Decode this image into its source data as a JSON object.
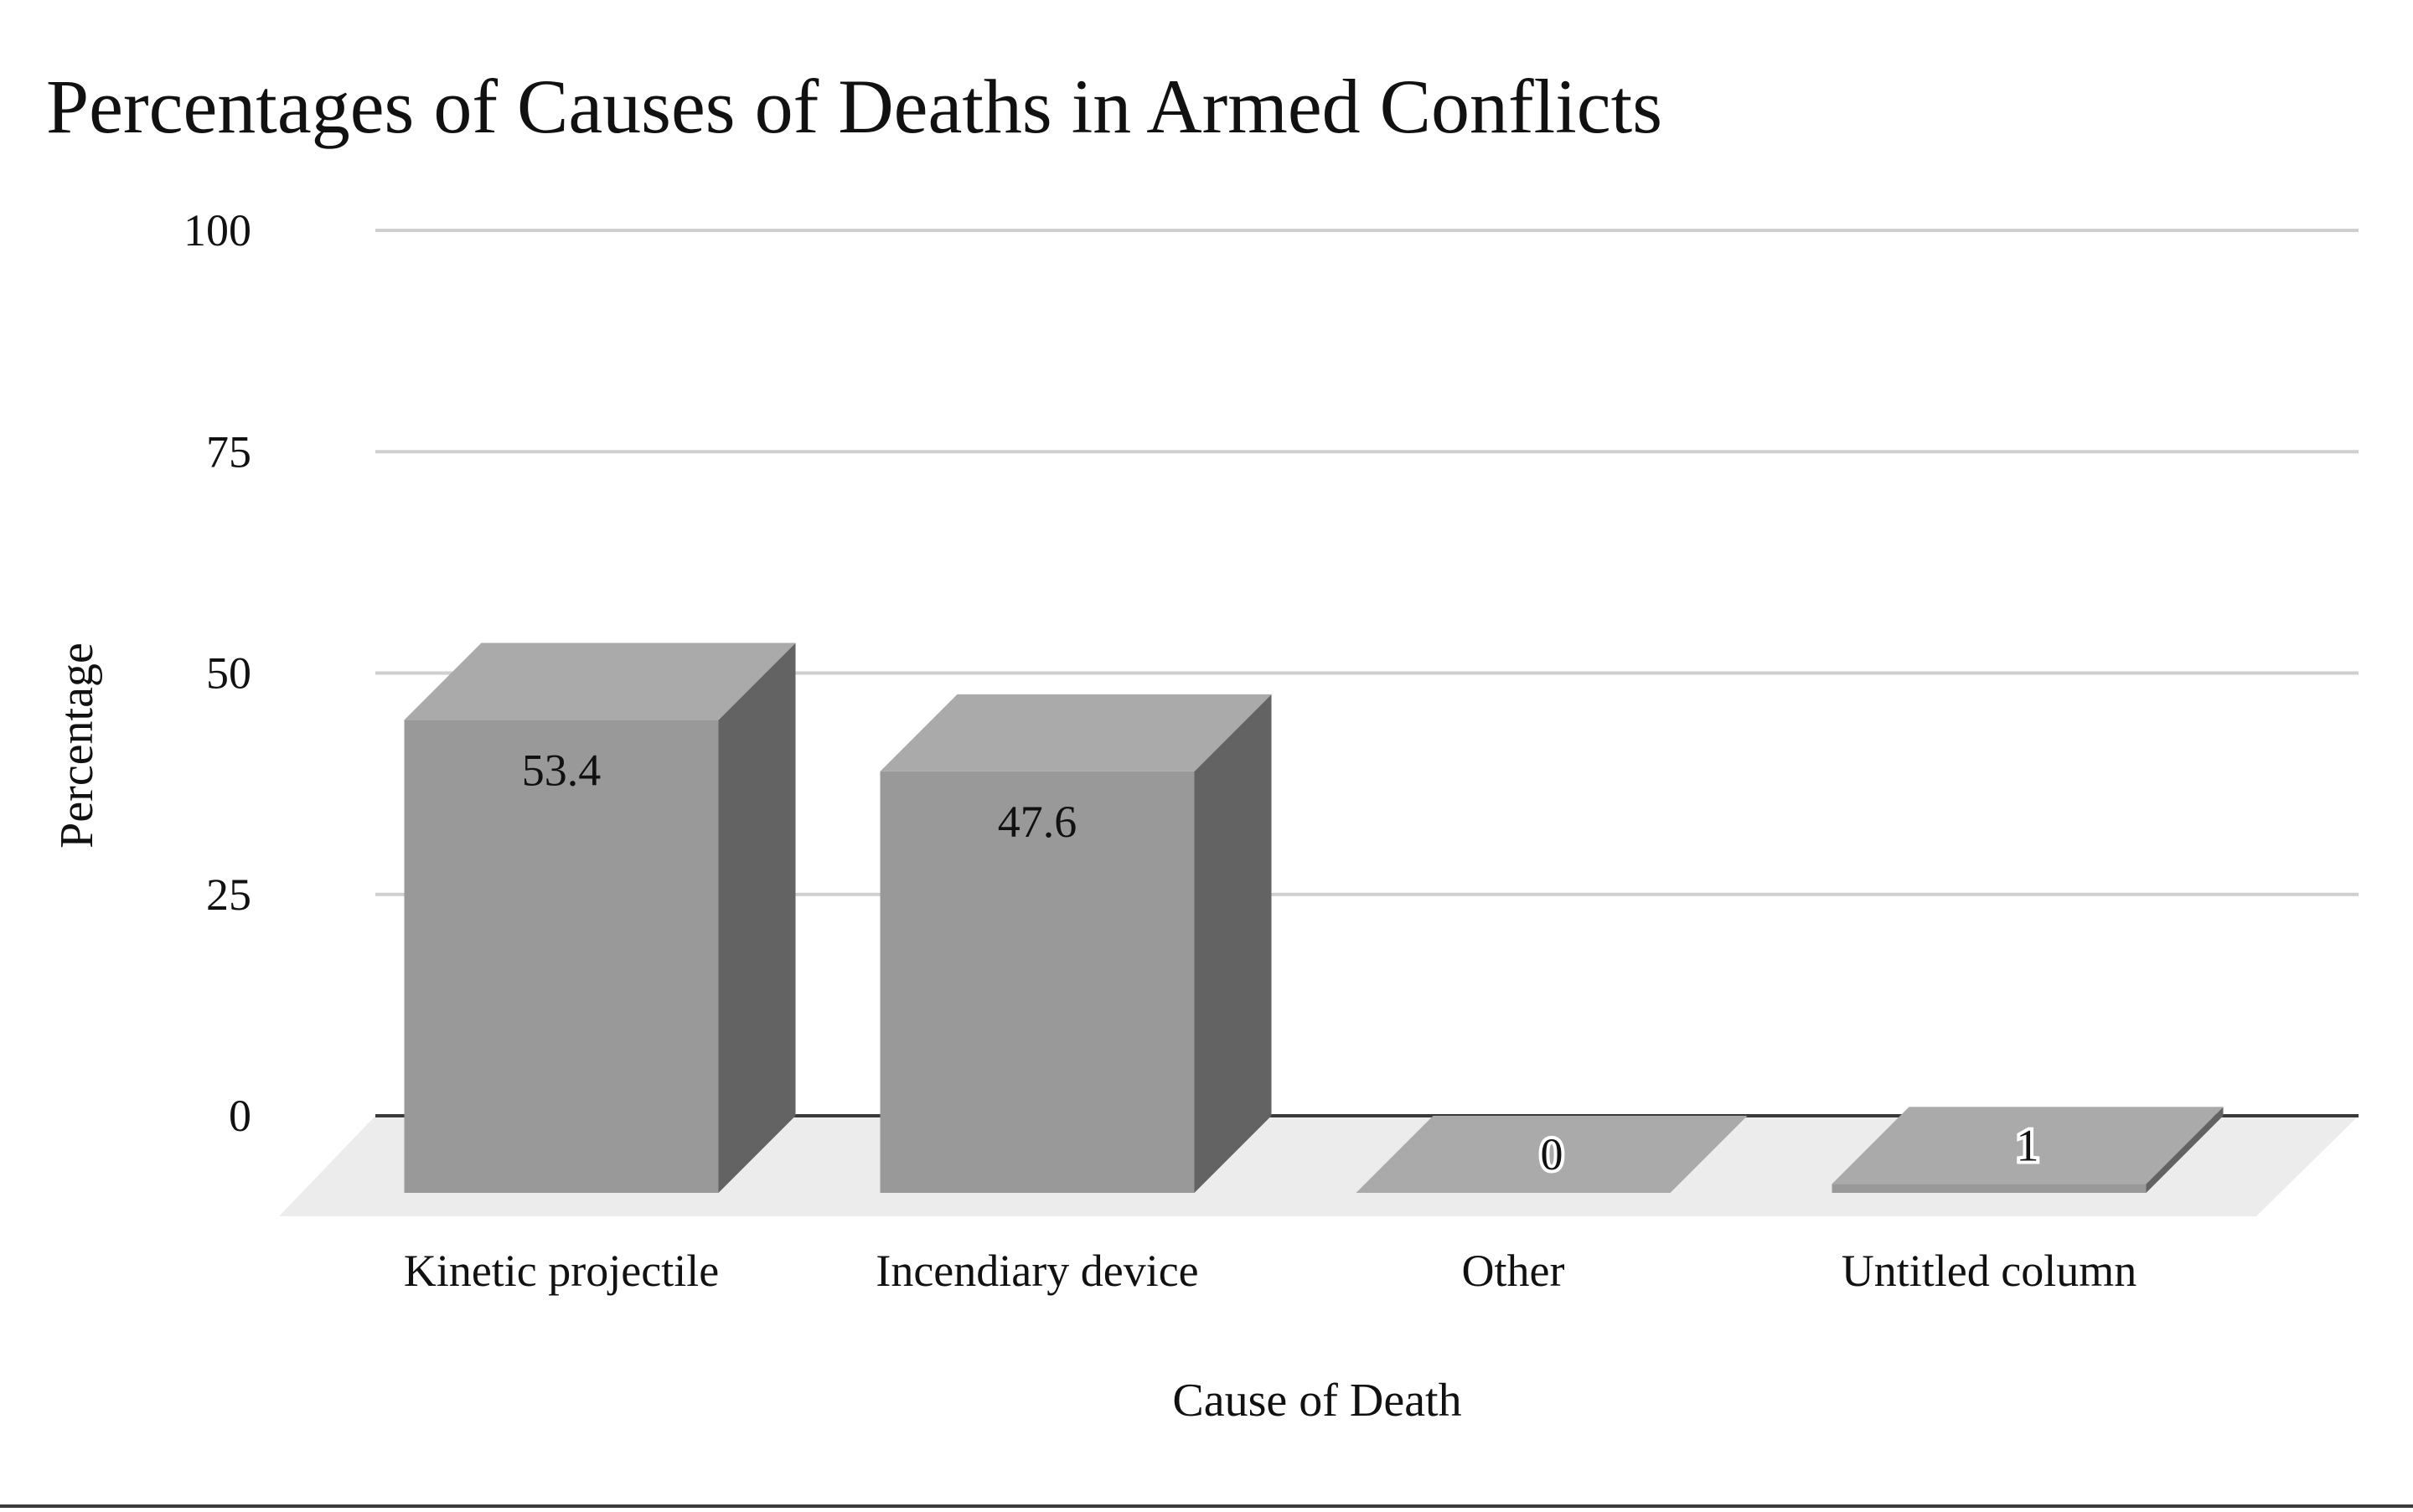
{
  "chart_data": {
    "type": "bar",
    "title": "Percentages of Causes of Deaths in Armed Conflicts",
    "xlabel": "Cause of Death",
    "ylabel": "Percentage",
    "categories": [
      "Kinetic projectile",
      "Incendiary device",
      "Other",
      "Untitled column"
    ],
    "values": [
      53.4,
      47.6,
      0,
      1
    ],
    "value_labels": [
      "53.4",
      "47.6",
      "0",
      "1"
    ],
    "ylim": [
      0,
      100
    ],
    "yticks": [
      0,
      25,
      50,
      75,
      100
    ],
    "ytick_labels": [
      "0",
      "25",
      "50",
      "75",
      "100"
    ],
    "grid": true,
    "legend": "none",
    "style": "3d-column",
    "colors": {
      "bar_front": "#999999",
      "bar_top": "#aaaaaa",
      "bar_side": "#636363",
      "floor": "#ececec",
      "grid": "#cfcfcf",
      "baseline": "#3a3a3a"
    }
  }
}
